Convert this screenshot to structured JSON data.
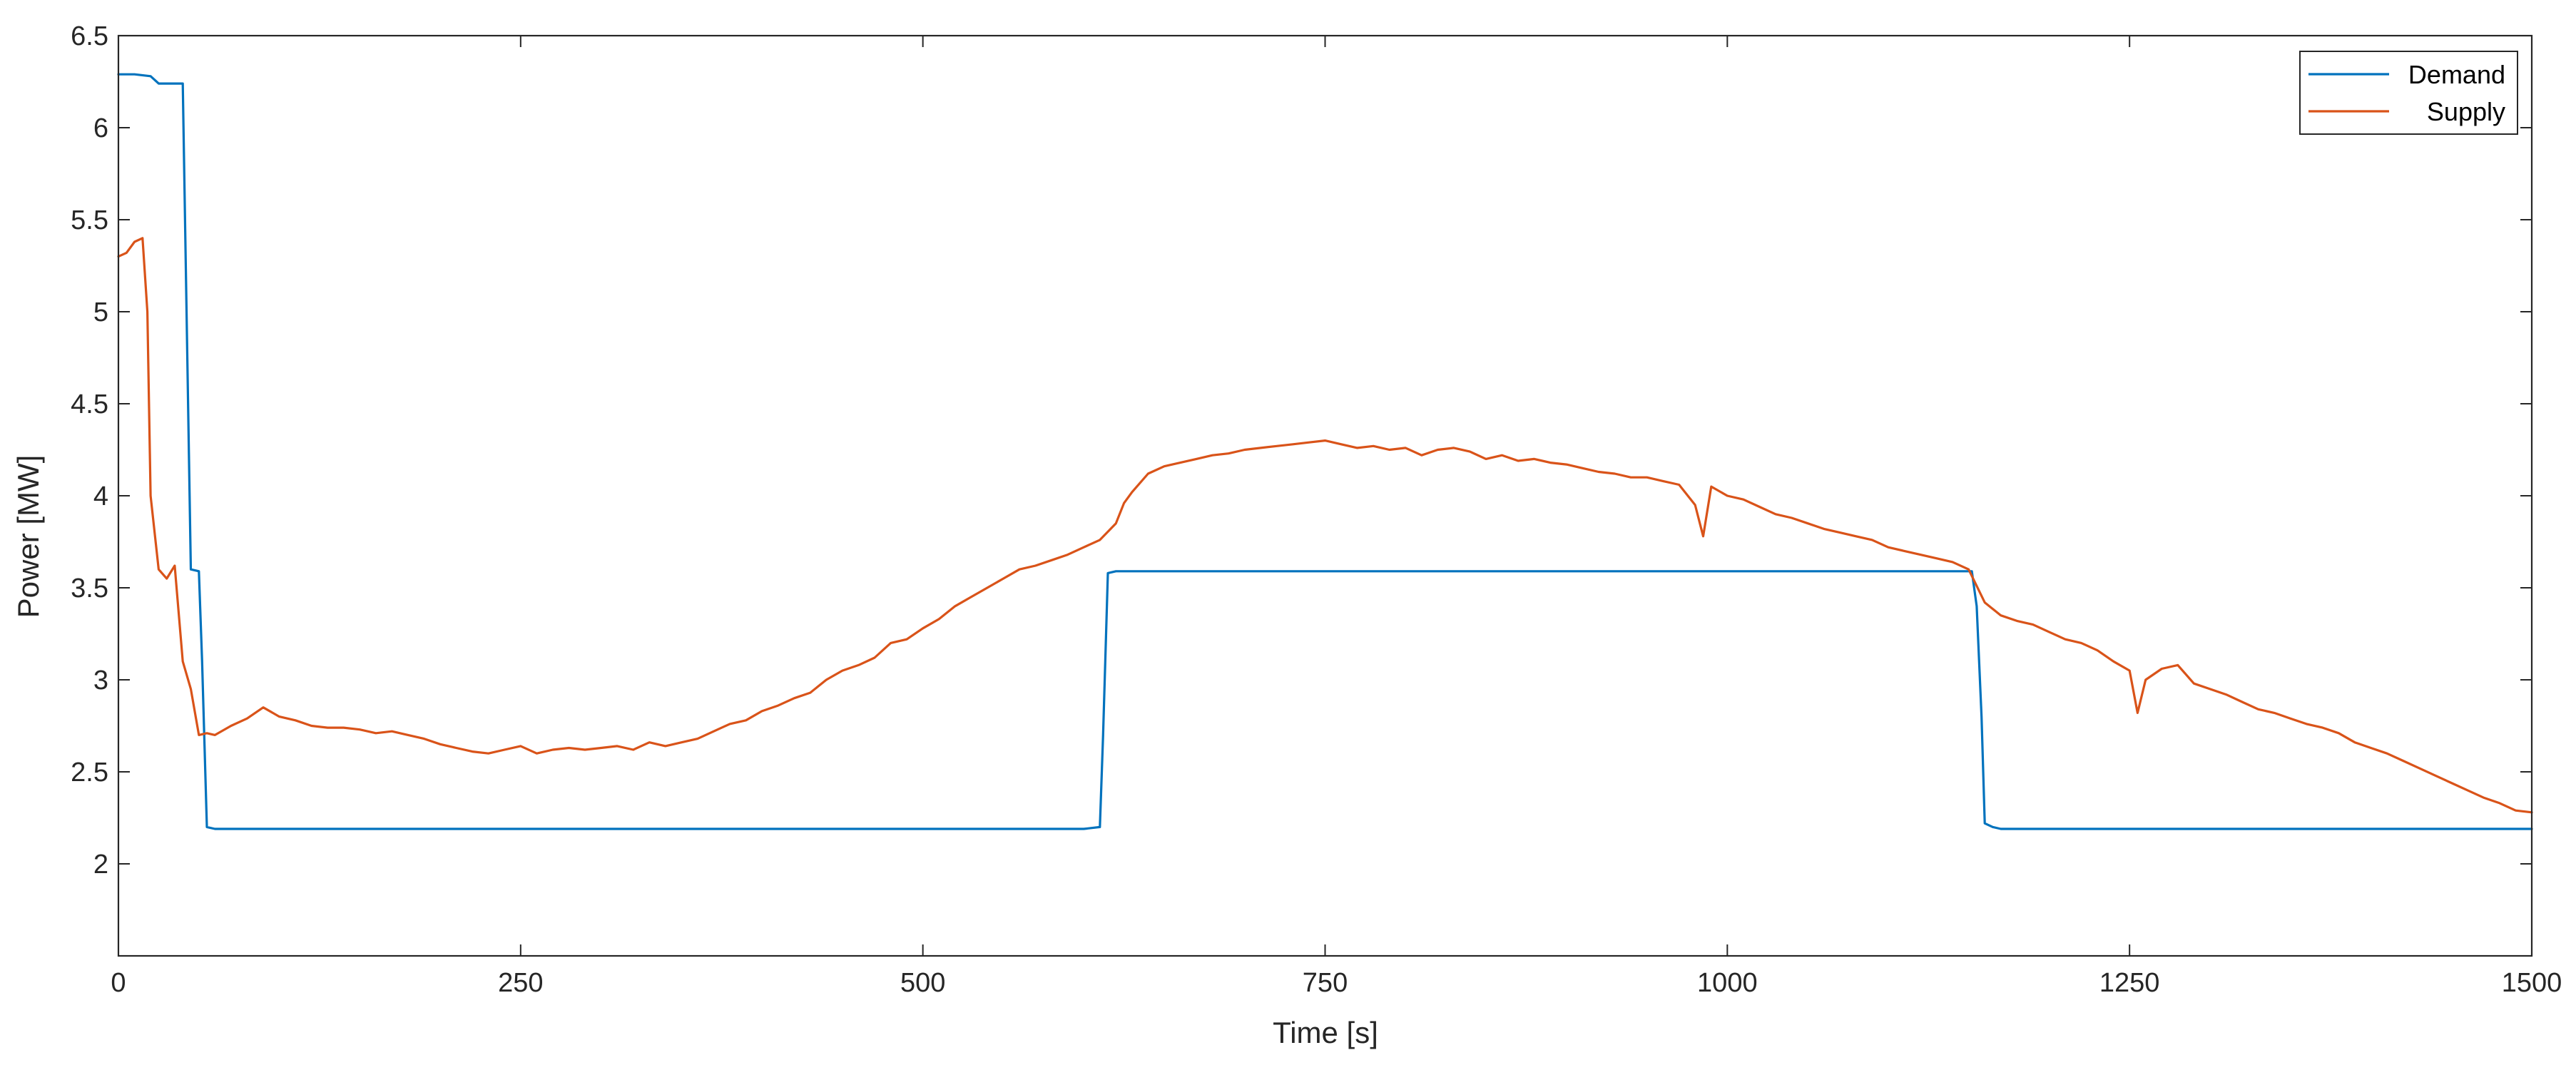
{
  "chart_data": {
    "type": "line",
    "title": "",
    "xlabel": "Time [s]",
    "ylabel": "Power [MW]",
    "xlim": [
      0,
      1500
    ],
    "ylim": [
      1.5,
      6.5
    ],
    "xticks": [
      0,
      250,
      500,
      750,
      1000,
      1250,
      1500
    ],
    "xtick_labels": [
      "0",
      "250",
      "500",
      "750",
      "1000",
      "1250",
      "1500"
    ],
    "yticks": [
      2,
      2.5,
      3,
      3.5,
      4,
      4.5,
      5,
      5.5,
      6,
      6.5
    ],
    "ytick_labels": [
      "2",
      "2.5",
      "3",
      "3.5",
      "4",
      "4.5",
      "5",
      "5.5",
      "6",
      "6.5"
    ],
    "grid": false,
    "legend_position": "top-right",
    "colors": {
      "Demand": "#0072BD",
      "Supply": "#D95319",
      "axis": "#262626",
      "background": "#ffffff"
    },
    "series": [
      {
        "name": "Demand",
        "x": [
          0,
          10,
          20,
          25,
          30,
          40,
          45,
          50,
          52,
          55,
          60,
          65,
          100,
          200,
          300,
          400,
          500,
          600,
          610,
          612,
          615,
          620,
          700,
          800,
          900,
          1000,
          1100,
          1150,
          1152,
          1155,
          1158,
          1160,
          1165,
          1170,
          1200,
          1300,
          1400,
          1500
        ],
        "y": [
          6.29,
          6.29,
          6.28,
          6.24,
          6.24,
          6.24,
          3.6,
          3.59,
          3.1,
          2.2,
          2.19,
          2.19,
          2.19,
          2.19,
          2.19,
          2.19,
          2.19,
          2.19,
          2.2,
          2.7,
          3.58,
          3.59,
          3.59,
          3.59,
          3.59,
          3.59,
          3.59,
          3.59,
          3.59,
          3.4,
          2.8,
          2.22,
          2.2,
          2.19,
          2.19,
          2.19,
          2.19,
          2.19
        ]
      },
      {
        "name": "Supply",
        "x": [
          0,
          5,
          10,
          15,
          18,
          20,
          25,
          30,
          35,
          40,
          45,
          50,
          55,
          60,
          70,
          80,
          90,
          100,
          110,
          120,
          130,
          140,
          150,
          160,
          170,
          180,
          190,
          200,
          210,
          220,
          230,
          240,
          250,
          260,
          270,
          280,
          290,
          300,
          310,
          320,
          330,
          340,
          350,
          360,
          370,
          380,
          390,
          400,
          410,
          420,
          430,
          440,
          450,
          460,
          470,
          480,
          490,
          500,
          510,
          520,
          530,
          540,
          550,
          560,
          570,
          580,
          590,
          600,
          610,
          620,
          625,
          630,
          640,
          650,
          660,
          670,
          680,
          690,
          700,
          710,
          720,
          730,
          740,
          750,
          760,
          770,
          780,
          790,
          800,
          810,
          820,
          830,
          840,
          850,
          860,
          870,
          880,
          890,
          900,
          910,
          920,
          930,
          940,
          950,
          960,
          970,
          980,
          985,
          990,
          1000,
          1010,
          1020,
          1030,
          1040,
          1050,
          1060,
          1070,
          1080,
          1090,
          1100,
          1110,
          1120,
          1130,
          1140,
          1150,
          1160,
          1170,
          1180,
          1190,
          1200,
          1210,
          1220,
          1230,
          1240,
          1250,
          1255,
          1260,
          1270,
          1280,
          1290,
          1300,
          1310,
          1320,
          1330,
          1340,
          1350,
          1360,
          1370,
          1380,
          1390,
          1400,
          1410,
          1420,
          1430,
          1440,
          1450,
          1460,
          1470,
          1480,
          1490,
          1500
        ],
        "y": [
          5.3,
          5.32,
          5.38,
          5.4,
          5.0,
          4.0,
          3.6,
          3.55,
          3.62,
          3.1,
          2.95,
          2.7,
          2.71,
          2.7,
          2.75,
          2.79,
          2.85,
          2.8,
          2.78,
          2.75,
          2.74,
          2.74,
          2.73,
          2.71,
          2.72,
          2.7,
          2.68,
          2.65,
          2.63,
          2.61,
          2.6,
          2.62,
          2.64,
          2.6,
          2.62,
          2.63,
          2.62,
          2.63,
          2.64,
          2.62,
          2.66,
          2.64,
          2.66,
          2.68,
          2.72,
          2.76,
          2.78,
          2.83,
          2.86,
          2.9,
          2.93,
          3.0,
          3.05,
          3.08,
          3.12,
          3.2,
          3.22,
          3.28,
          3.33,
          3.4,
          3.45,
          3.5,
          3.55,
          3.6,
          3.62,
          3.65,
          3.68,
          3.72,
          3.76,
          3.85,
          3.96,
          4.02,
          4.12,
          4.16,
          4.18,
          4.2,
          4.22,
          4.23,
          4.25,
          4.26,
          4.27,
          4.28,
          4.29,
          4.3,
          4.28,
          4.26,
          4.27,
          4.25,
          4.26,
          4.22,
          4.25,
          4.26,
          4.24,
          4.2,
          4.22,
          4.19,
          4.2,
          4.18,
          4.17,
          4.15,
          4.13,
          4.12,
          4.1,
          4.1,
          4.08,
          4.06,
          3.95,
          3.78,
          4.05,
          4.0,
          3.98,
          3.94,
          3.9,
          3.88,
          3.85,
          3.82,
          3.8,
          3.78,
          3.76,
          3.72,
          3.7,
          3.68,
          3.66,
          3.64,
          3.6,
          3.42,
          3.35,
          3.32,
          3.3,
          3.26,
          3.22,
          3.2,
          3.16,
          3.1,
          3.05,
          2.82,
          3.0,
          3.06,
          3.08,
          2.98,
          2.95,
          2.92,
          2.88,
          2.84,
          2.82,
          2.79,
          2.76,
          2.74,
          2.71,
          2.66,
          2.63,
          2.6,
          2.56,
          2.52,
          2.48,
          2.44,
          2.4,
          2.36,
          2.33,
          2.29,
          2.28
        ]
      }
    ]
  }
}
